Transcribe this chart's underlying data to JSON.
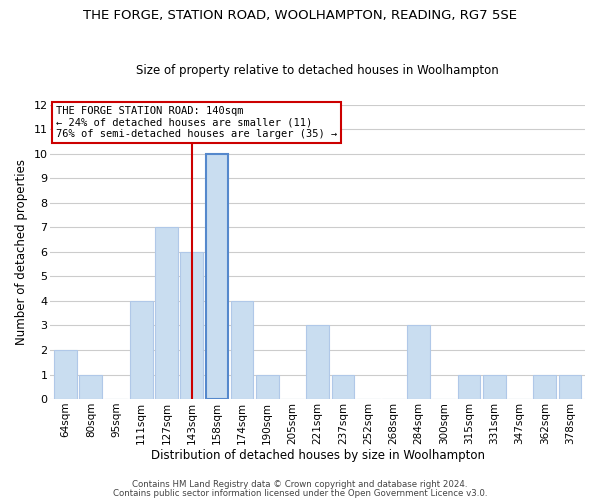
{
  "title": "THE FORGE, STATION ROAD, WOOLHAMPTON, READING, RG7 5SE",
  "subtitle": "Size of property relative to detached houses in Woolhampton",
  "xlabel": "Distribution of detached houses by size in Woolhampton",
  "ylabel": "Number of detached properties",
  "bin_labels": [
    "64sqm",
    "80sqm",
    "95sqm",
    "111sqm",
    "127sqm",
    "143sqm",
    "158sqm",
    "174sqm",
    "190sqm",
    "205sqm",
    "221sqm",
    "237sqm",
    "252sqm",
    "268sqm",
    "284sqm",
    "300sqm",
    "315sqm",
    "331sqm",
    "347sqm",
    "362sqm",
    "378sqm"
  ],
  "bar_heights": [
    2,
    1,
    0,
    4,
    7,
    6,
    10,
    4,
    1,
    0,
    3,
    1,
    0,
    0,
    3,
    0,
    1,
    1,
    0,
    1,
    1
  ],
  "bar_color": "#c9ddf0",
  "bar_edge_color": "#b0c8e8",
  "highlight_bar_index": 6,
  "highlight_bar_edge_color": "#5588cc",
  "vline_index": 5,
  "highlight_line_color": "#cc0000",
  "ylim": [
    0,
    12
  ],
  "yticks": [
    0,
    1,
    2,
    3,
    4,
    5,
    6,
    7,
    8,
    9,
    10,
    11,
    12
  ],
  "annotation_title": "THE FORGE STATION ROAD: 140sqm",
  "annotation_line1": "← 24% of detached houses are smaller (11)",
  "annotation_line2": "76% of semi-detached houses are larger (35) →",
  "annotation_box_color": "#ffffff",
  "annotation_box_edge": "#cc0000",
  "grid_color": "#cccccc",
  "background_color": "#ffffff",
  "footer_line1": "Contains HM Land Registry data © Crown copyright and database right 2024.",
  "footer_line2": "Contains public sector information licensed under the Open Government Licence v3.0."
}
